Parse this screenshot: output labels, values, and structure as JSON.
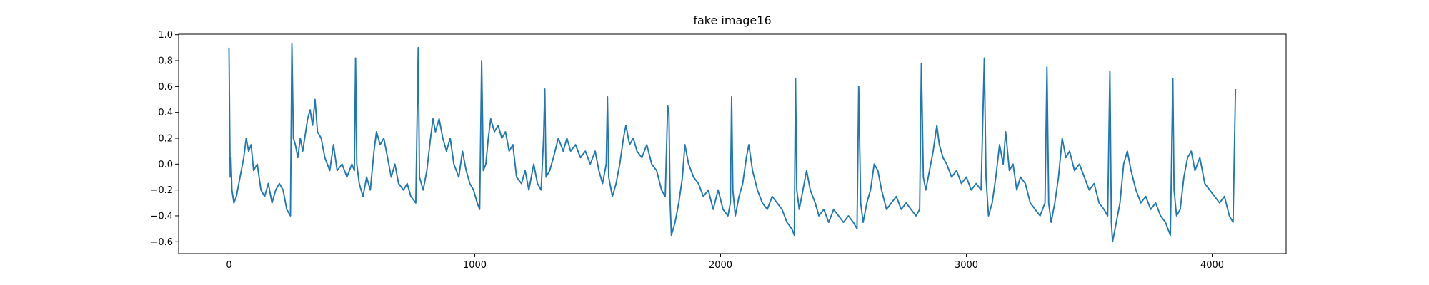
{
  "chart_data": {
    "type": "line",
    "title": "fake image16",
    "x": [
      0,
      5,
      8,
      12,
      20,
      30,
      45,
      60,
      70,
      80,
      90,
      100,
      115,
      130,
      145,
      160,
      175,
      190,
      205,
      220,
      235,
      250,
      256,
      262,
      270,
      280,
      290,
      300,
      320,
      330,
      340,
      350,
      360,
      375,
      390,
      410,
      425,
      440,
      460,
      480,
      500,
      510,
      515,
      520,
      530,
      545,
      560,
      575,
      590,
      600,
      615,
      630,
      645,
      660,
      675,
      690,
      710,
      725,
      740,
      760,
      770,
      775,
      790,
      805,
      820,
      830,
      840,
      855,
      870,
      885,
      900,
      915,
      935,
      950,
      965,
      980,
      995,
      1010,
      1020,
      1028,
      1035,
      1045,
      1055,
      1065,
      1080,
      1095,
      1110,
      1125,
      1140,
      1155,
      1170,
      1190,
      1205,
      1220,
      1240,
      1255,
      1270,
      1280,
      1285,
      1290,
      1305,
      1320,
      1340,
      1360,
      1375,
      1390,
      1410,
      1430,
      1450,
      1470,
      1490,
      1505,
      1520,
      1535,
      1540,
      1545,
      1560,
      1575,
      1590,
      1605,
      1615,
      1630,
      1645,
      1660,
      1680,
      1700,
      1720,
      1740,
      1760,
      1775,
      1785,
      1790,
      1795,
      1800,
      1815,
      1830,
      1845,
      1855,
      1870,
      1890,
      1910,
      1930,
      1950,
      1970,
      1990,
      2010,
      2030,
      2040,
      2045,
      2050,
      2060,
      2075,
      2090,
      2105,
      2115,
      2130,
      2150,
      2170,
      2190,
      2210,
      2230,
      2250,
      2270,
      2290,
      2300,
      2305,
      2310,
      2320,
      2335,
      2350,
      2365,
      2385,
      2400,
      2420,
      2440,
      2460,
      2480,
      2500,
      2520,
      2540,
      2555,
      2562,
      2570,
      2580,
      2595,
      2610,
      2625,
      2640,
      2655,
      2675,
      2695,
      2715,
      2735,
      2755,
      2775,
      2795,
      2810,
      2817,
      2825,
      2835,
      2850,
      2865,
      2880,
      2890,
      2905,
      2920,
      2940,
      2960,
      2980,
      3000,
      3020,
      3040,
      3060,
      3073,
      3080,
      3090,
      3105,
      3120,
      3135,
      3150,
      3160,
      3175,
      3190,
      3205,
      3220,
      3240,
      3260,
      3280,
      3300,
      3320,
      3328,
      3335,
      3345,
      3360,
      3375,
      3390,
      3405,
      3420,
      3440,
      3460,
      3480,
      3500,
      3520,
      3540,
      3560,
      3575,
      3584,
      3590,
      3595,
      3610,
      3625,
      3640,
      3655,
      3670,
      3690,
      3710,
      3730,
      3750,
      3770,
      3790,
      3810,
      3830,
      3840,
      3845,
      3855,
      3870,
      3885,
      3900,
      3915,
      3930,
      3950,
      3970,
      3990,
      4010,
      4030,
      4050,
      4070,
      4085,
      4095
    ],
    "series": [
      {
        "color": "#1f77b4",
        "values": [
          0.9,
          -0.1,
          0.05,
          -0.2,
          -0.3,
          -0.25,
          -0.1,
          0.05,
          0.2,
          0.1,
          0.15,
          -0.05,
          0.0,
          -0.2,
          -0.25,
          -0.15,
          -0.3,
          -0.2,
          -0.15,
          -0.2,
          -0.35,
          -0.4,
          0.93,
          0.2,
          0.15,
          0.05,
          0.2,
          0.1,
          0.35,
          0.42,
          0.3,
          0.5,
          0.25,
          0.2,
          0.05,
          -0.05,
          0.15,
          -0.05,
          0.0,
          -0.1,
          0.0,
          -0.05,
          0.82,
          0.0,
          -0.15,
          -0.25,
          -0.1,
          -0.2,
          0.1,
          0.25,
          0.15,
          0.2,
          0.05,
          -0.1,
          0.0,
          -0.15,
          -0.2,
          -0.15,
          -0.25,
          -0.3,
          0.9,
          -0.1,
          -0.2,
          -0.05,
          0.2,
          0.35,
          0.25,
          0.35,
          0.2,
          0.1,
          0.2,
          0.0,
          -0.1,
          0.1,
          -0.05,
          -0.15,
          -0.2,
          -0.3,
          -0.35,
          0.8,
          -0.05,
          0.0,
          0.2,
          0.35,
          0.25,
          0.3,
          0.2,
          0.25,
          0.1,
          0.15,
          -0.1,
          -0.15,
          -0.05,
          -0.2,
          0.0,
          -0.15,
          -0.2,
          0.2,
          0.58,
          -0.1,
          -0.05,
          0.05,
          0.2,
          0.1,
          0.2,
          0.1,
          0.15,
          0.05,
          0.1,
          0.0,
          0.1,
          -0.05,
          -0.15,
          0.0,
          0.52,
          -0.1,
          -0.25,
          -0.15,
          0.0,
          0.2,
          0.3,
          0.15,
          0.2,
          0.1,
          0.05,
          0.15,
          0.0,
          -0.05,
          -0.2,
          -0.25,
          0.45,
          0.4,
          -0.3,
          -0.55,
          -0.45,
          -0.3,
          -0.1,
          0.15,
          0.0,
          -0.1,
          -0.15,
          -0.25,
          -0.2,
          -0.35,
          -0.2,
          -0.35,
          -0.4,
          -0.3,
          0.52,
          -0.2,
          -0.4,
          -0.25,
          -0.15,
          0.05,
          0.15,
          -0.05,
          -0.2,
          -0.3,
          -0.35,
          -0.25,
          -0.3,
          -0.35,
          -0.45,
          -0.5,
          -0.55,
          0.66,
          -0.2,
          -0.35,
          -0.2,
          -0.05,
          -0.2,
          -0.3,
          -0.4,
          -0.35,
          -0.45,
          -0.35,
          -0.4,
          -0.45,
          -0.4,
          -0.45,
          -0.5,
          0.6,
          -0.3,
          -0.45,
          -0.3,
          -0.2,
          0.0,
          -0.05,
          -0.2,
          -0.35,
          -0.3,
          -0.25,
          -0.35,
          -0.3,
          -0.35,
          -0.4,
          -0.35,
          0.78,
          -0.1,
          -0.2,
          -0.05,
          0.1,
          0.3,
          0.15,
          0.05,
          0.0,
          -0.1,
          -0.05,
          -0.15,
          -0.1,
          -0.2,
          -0.15,
          -0.2,
          0.82,
          -0.1,
          -0.4,
          -0.3,
          -0.1,
          0.15,
          0.0,
          0.25,
          -0.05,
          0.0,
          -0.2,
          -0.1,
          -0.15,
          -0.3,
          -0.35,
          -0.4,
          -0.3,
          0.75,
          -0.3,
          -0.45,
          -0.3,
          -0.1,
          0.2,
          0.05,
          0.1,
          -0.05,
          0.0,
          -0.1,
          -0.2,
          -0.15,
          -0.3,
          -0.35,
          -0.4,
          0.72,
          -0.45,
          -0.6,
          -0.45,
          -0.3,
          0.0,
          0.1,
          -0.05,
          -0.2,
          -0.3,
          -0.25,
          -0.35,
          -0.3,
          -0.4,
          -0.45,
          -0.55,
          0.66,
          -0.2,
          -0.4,
          -0.35,
          -0.1,
          0.05,
          0.1,
          -0.05,
          0.05,
          -0.15,
          -0.2,
          -0.25,
          -0.3,
          -0.25,
          -0.4,
          -0.45,
          0.58
        ]
      }
    ],
    "xlim": [
      -204.8,
      4300.8
    ],
    "xticks": [
      0,
      1000,
      2000,
      3000,
      4000
    ],
    "ylim": [
      -0.692,
      1.004
    ],
    "yticks": [
      {
        "value": -0.6,
        "label": "−0.6"
      },
      {
        "value": -0.4,
        "label": "−0.4"
      },
      {
        "value": -0.2,
        "label": "−0.2"
      },
      {
        "value": 0,
        "label": "0.0"
      },
      0.2,
      0.4,
      0.6,
      0.8,
      {
        "value": 1,
        "label": "1.0"
      }
    ]
  }
}
